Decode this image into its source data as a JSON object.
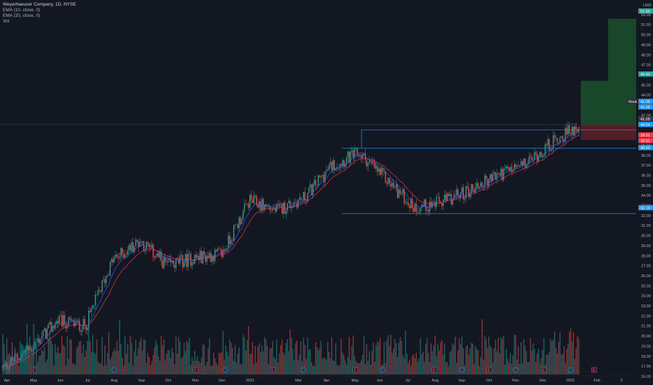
{
  "legend": {
    "title": "Weyerhaeuser Company, 1D, NYSE",
    "ema10": "EMA (10, close, 0)",
    "ema20": "EMA (20, close, 0)",
    "vol": "Vol"
  },
  "axis": {
    "currency": "USD",
    "rout_label": "Rout"
  },
  "colors": {
    "background": "#131722",
    "up": "#26a69a",
    "down": "#ef5350",
    "ema10": "#2962ff",
    "ema20": "#f23645",
    "level": "#2196f3",
    "profit_zone": "#1b4d2b",
    "loss_zone": "#5c1f27"
  },
  "chart_data": {
    "type": "candlestick",
    "y_range": [
      16.0,
      53.0
    ],
    "y_ticks": [
      "53.00",
      "52.00",
      "51.00",
      "50.00",
      "49.00",
      "48.00",
      "47.00",
      "46.00",
      "45.00",
      "44.00",
      "43.00",
      "42.00",
      "41.00",
      "40.00",
      "39.00",
      "38.00",
      "37.00",
      "36.00",
      "35.00",
      "34.00",
      "33.00",
      "32.00",
      "31.00",
      "30.00",
      "29.00",
      "28.00",
      "27.00",
      "26.00",
      "25.00",
      "24.00",
      "23.00",
      "22.00",
      "21.00",
      "20.00",
      "19.00",
      "18.00",
      "17.00",
      "16.00"
    ],
    "x_ticks": [
      "Apr",
      "May",
      "Jun",
      "Jul",
      "Aug",
      "Sep",
      "Oct",
      "Nov",
      "Dec",
      "2021",
      "Mar",
      "Apr",
      "May",
      "Jun",
      "Jul",
      "Aug",
      "Sep",
      "Oct",
      "Nov",
      "Dec",
      "2022",
      "Feb",
      "2"
    ],
    "price_path": [
      {
        "date": "2020-04",
        "close": 16.8
      },
      {
        "date": "2020-05",
        "close": 18.8
      },
      {
        "date": "2020-06",
        "close": 21.5
      },
      {
        "date": "2020-07",
        "close": 21.0
      },
      {
        "date": "2020-08",
        "close": 27.5
      },
      {
        "date": "2020-09",
        "close": 29.5
      },
      {
        "date": "2020-10",
        "close": 27.0
      },
      {
        "date": "2020-11",
        "close": 27.8
      },
      {
        "date": "2020-12",
        "close": 28.2
      },
      {
        "date": "2021-01",
        "close": 33.5
      },
      {
        "date": "2021-02",
        "close": 32.5
      },
      {
        "date": "2021-03",
        "close": 33.8
      },
      {
        "date": "2021-04",
        "close": 37.0
      },
      {
        "date": "2021-05",
        "close": 38.2
      },
      {
        "date": "2021-06",
        "close": 35.5
      },
      {
        "date": "2021-07",
        "close": 32.8
      },
      {
        "date": "2021-08",
        "close": 33.3
      },
      {
        "date": "2021-09",
        "close": 34.5
      },
      {
        "date": "2021-10",
        "close": 36.0
      },
      {
        "date": "2021-11",
        "close": 37.0
      },
      {
        "date": "2021-12",
        "close": 39.2
      },
      {
        "date": "2022-01",
        "close": 41.0
      }
    ],
    "levels": [
      {
        "name": "resistance-high",
        "value": 40.54
      },
      {
        "name": "resistance",
        "value": 38.69
      },
      {
        "name": "support",
        "value": 32.19
      }
    ],
    "price_tags": [
      {
        "label": "51.59",
        "value": 51.59,
        "color": "#26a69a"
      },
      {
        "label": "45.40",
        "value": 45.4,
        "color": "#26a69a"
      },
      {
        "label": "41.05",
        "value": 41.05,
        "color": "#2196f3"
      },
      {
        "label": "41.05",
        "value": 41.05,
        "color": "#2196f3"
      },
      {
        "label": "41.05",
        "value": 41.05,
        "color": "#363a45"
      },
      {
        "label": "40.54",
        "value": 40.54,
        "color": "#2196f3"
      },
      {
        "label": "39.51",
        "value": 39.51,
        "color": "#f23645"
      },
      {
        "label": "39.51",
        "value": 39.51,
        "color": "#f23645"
      },
      {
        "label": "38.69",
        "value": 38.69,
        "color": "#2196f3"
      },
      {
        "label": "32.19",
        "value": 32.19,
        "color": "#2196f3"
      }
    ],
    "positions": [
      {
        "kind": "long",
        "entry": 41.05,
        "target": 45.4,
        "stop": 39.51
      },
      {
        "kind": "long",
        "entry": 41.05,
        "target": 51.59,
        "stop": 39.51
      }
    ],
    "event_markers": [
      "E",
      "D",
      "E",
      "D",
      "E",
      "D",
      "E",
      "D",
      "E",
      "D",
      "E",
      "D",
      "E",
      "D",
      "E"
    ]
  }
}
